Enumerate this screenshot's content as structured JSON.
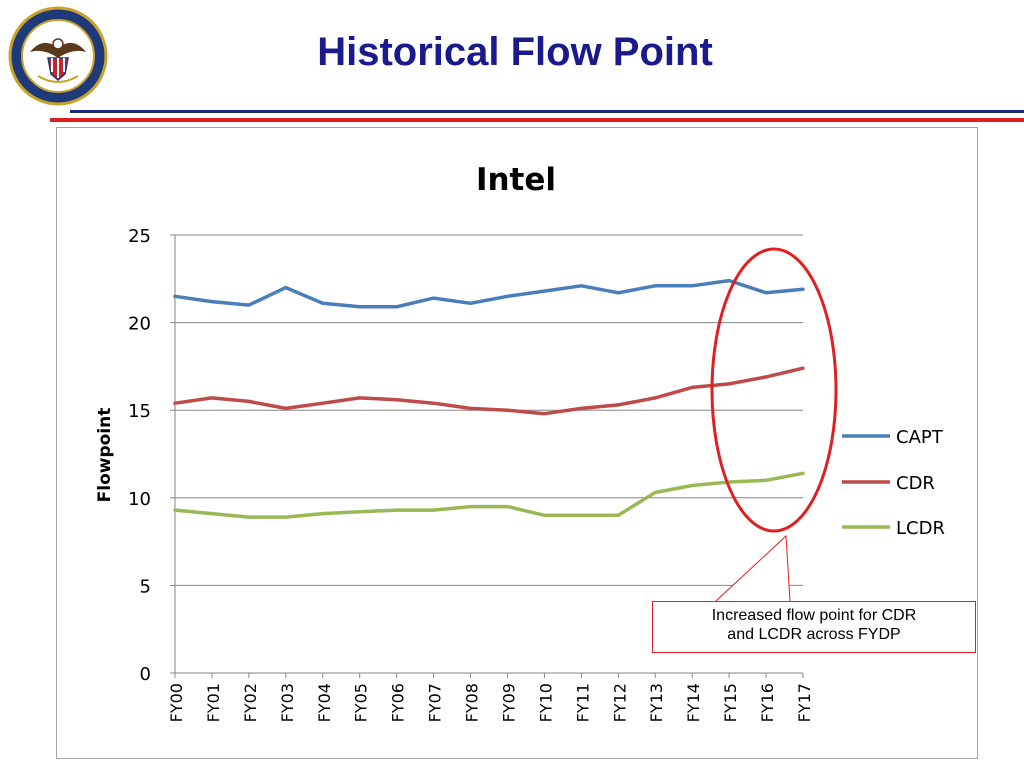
{
  "slide": {
    "title": "Historical Flow Point",
    "seal_text": "UNITED STATES NAVY · CHIEF OF NAVAL OPERATIONS",
    "callout_line1": "Increased flow point for CDR",
    "callout_line2": "and LCDR across FYDP"
  },
  "colors": {
    "title": "#1a1a8c",
    "rule_blue": "#1c2a7a",
    "rule_red": "#e02020",
    "highlight": "#e02020"
  },
  "chart_data": {
    "type": "line",
    "title": "Intel",
    "xlabel": "",
    "ylabel": "Flowpoint",
    "ylim": [
      0,
      25
    ],
    "yticks": [
      0,
      5,
      10,
      15,
      20,
      25
    ],
    "grid": true,
    "legend": "right",
    "categories": [
      "FY00",
      "FY01",
      "FY02",
      "FY03",
      "FY04",
      "FY05",
      "FY06",
      "FY07",
      "FY08",
      "FY09",
      "FY10",
      "FY11",
      "FY12",
      "FY13",
      "FY14",
      "FY15",
      "FY16",
      "FY17"
    ],
    "series": [
      {
        "name": "CAPT",
        "color": "#4a7ebb",
        "values": [
          21.5,
          21.2,
          21.0,
          22.0,
          21.1,
          20.9,
          20.9,
          21.4,
          21.1,
          21.5,
          21.8,
          22.1,
          21.7,
          22.1,
          22.1,
          22.4,
          21.7,
          21.9
        ]
      },
      {
        "name": "CDR",
        "color": "#be4b48",
        "values": [
          15.4,
          15.7,
          15.5,
          15.1,
          15.4,
          15.7,
          15.6,
          15.4,
          15.1,
          15.0,
          14.8,
          15.1,
          15.3,
          15.7,
          16.3,
          16.5,
          16.9,
          17.4
        ]
      },
      {
        "name": "LCDR",
        "color": "#98b954",
        "values": [
          9.3,
          9.1,
          8.9,
          8.9,
          9.1,
          9.2,
          9.3,
          9.3,
          9.5,
          9.5,
          9.0,
          9.0,
          9.0,
          10.3,
          10.7,
          10.9,
          11.0,
          11.4
        ]
      }
    ]
  }
}
